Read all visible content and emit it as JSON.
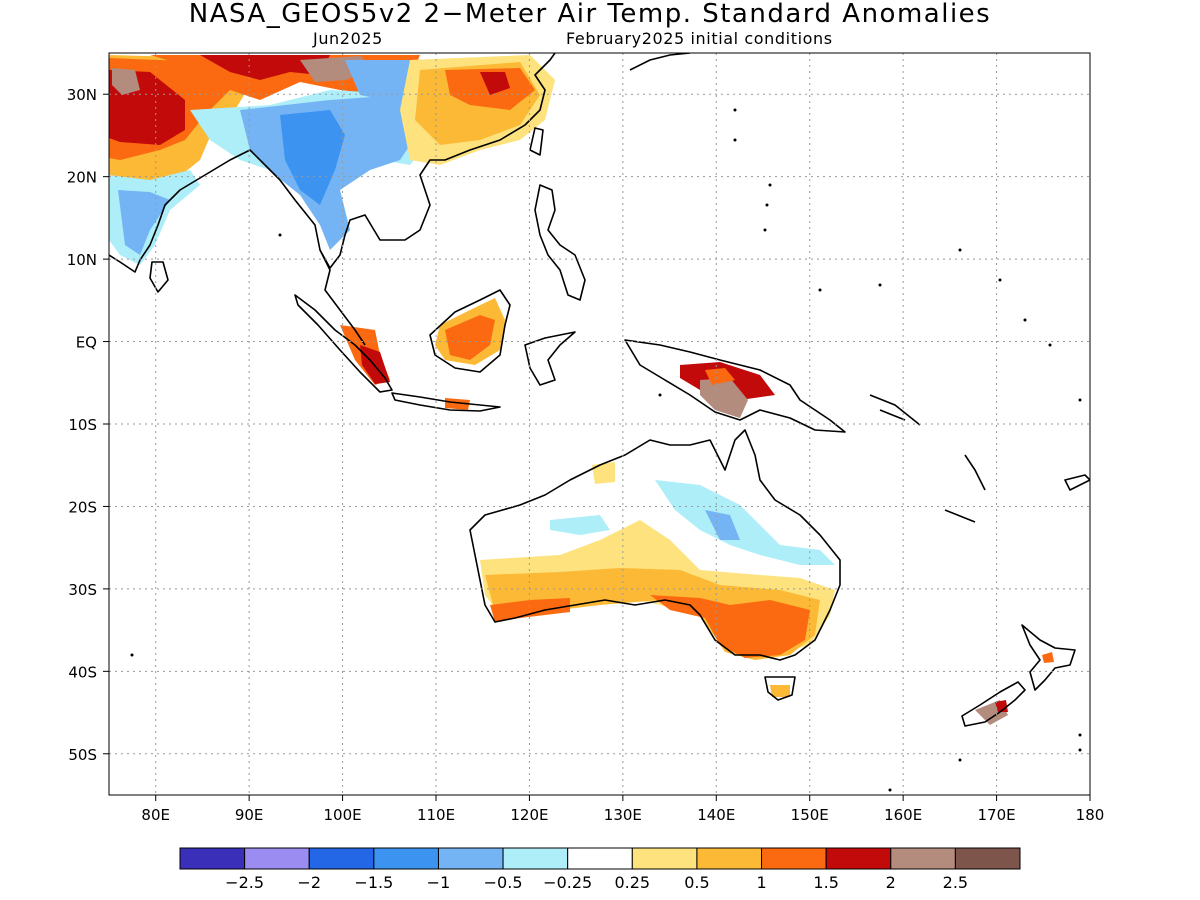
{
  "title": "NASA_GEOS5v2 2−Meter Air Temp. Standard Anomalies",
  "subtitle_left": "Jun2025",
  "subtitle_right": "February2025 initial conditions",
  "map": {
    "lon_range": [
      75,
      180
    ],
    "lat_range": [
      -55,
      35
    ],
    "grid": "dotted",
    "lat_ticks": [
      {
        "lat": 30,
        "label": "30N"
      },
      {
        "lat": 20,
        "label": "20N"
      },
      {
        "lat": 10,
        "label": "10N"
      },
      {
        "lat": 0,
        "label": "EQ"
      },
      {
        "lat": -10,
        "label": "10S"
      },
      {
        "lat": -20,
        "label": "20S"
      },
      {
        "lat": -30,
        "label": "30S"
      },
      {
        "lat": -40,
        "label": "40S"
      },
      {
        "lat": -50,
        "label": "50S"
      }
    ],
    "lon_ticks": [
      {
        "lon": 80,
        "label": "80E"
      },
      {
        "lon": 90,
        "label": "90E"
      },
      {
        "lon": 100,
        "label": "100E"
      },
      {
        "lon": 110,
        "label": "110E"
      },
      {
        "lon": 120,
        "label": "120E"
      },
      {
        "lon": 130,
        "label": "130E"
      },
      {
        "lon": 140,
        "label": "140E"
      },
      {
        "lon": 150,
        "label": "150E"
      },
      {
        "lon": 160,
        "label": "160E"
      },
      {
        "lon": 170,
        "label": "170E"
      },
      {
        "lon": 180,
        "label": "180"
      }
    ]
  },
  "colorbar": {
    "colors": [
      "#3a2fb8",
      "#9b8cf2",
      "#2367e6",
      "#3d93f0",
      "#74b4f4",
      "#aeeef8",
      "#ffffff",
      "#fde27e",
      "#fbb935",
      "#fb6a10",
      "#c30a0a",
      "#b38c7e",
      "#7d554a"
    ],
    "labels": [
      "−2.5",
      "−2",
      "−1.5",
      "−1",
      "−0.5",
      "−0.25",
      "0.25",
      "0.5",
      "1",
      "1.5",
      "2",
      "2.5"
    ]
  },
  "colors": {
    "land_outline": "#000000",
    "grid": "#999999"
  }
}
